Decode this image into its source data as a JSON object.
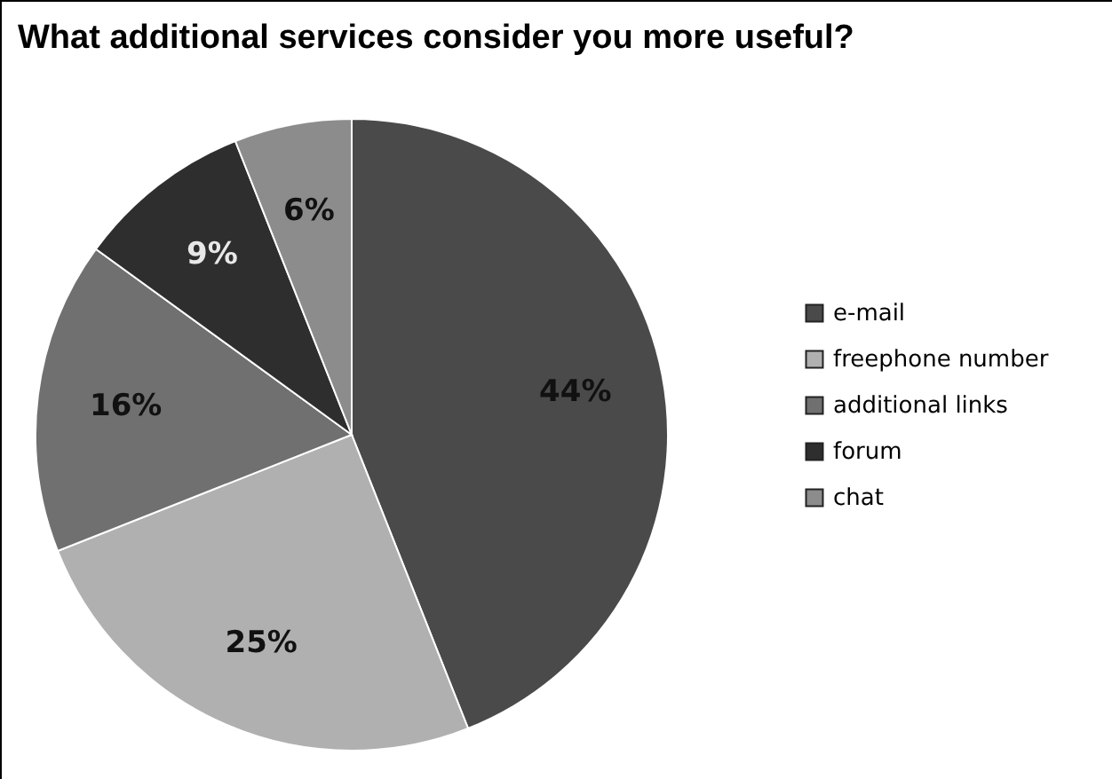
{
  "chart_data": {
    "type": "pie",
    "title": "What additional services consider you more useful?",
    "categories": [
      "e-mail",
      "freephone number",
      "additional links",
      "forum",
      "chat"
    ],
    "values": [
      44,
      25,
      16,
      9,
      6
    ],
    "colors": [
      "#4a4a4a",
      "#b0b0b0",
      "#707070",
      "#2e2e2e",
      "#8c8c8c"
    ],
    "value_labels": [
      "44%",
      "25%",
      "16%",
      "9%",
      "6%"
    ],
    "legend": "right"
  }
}
